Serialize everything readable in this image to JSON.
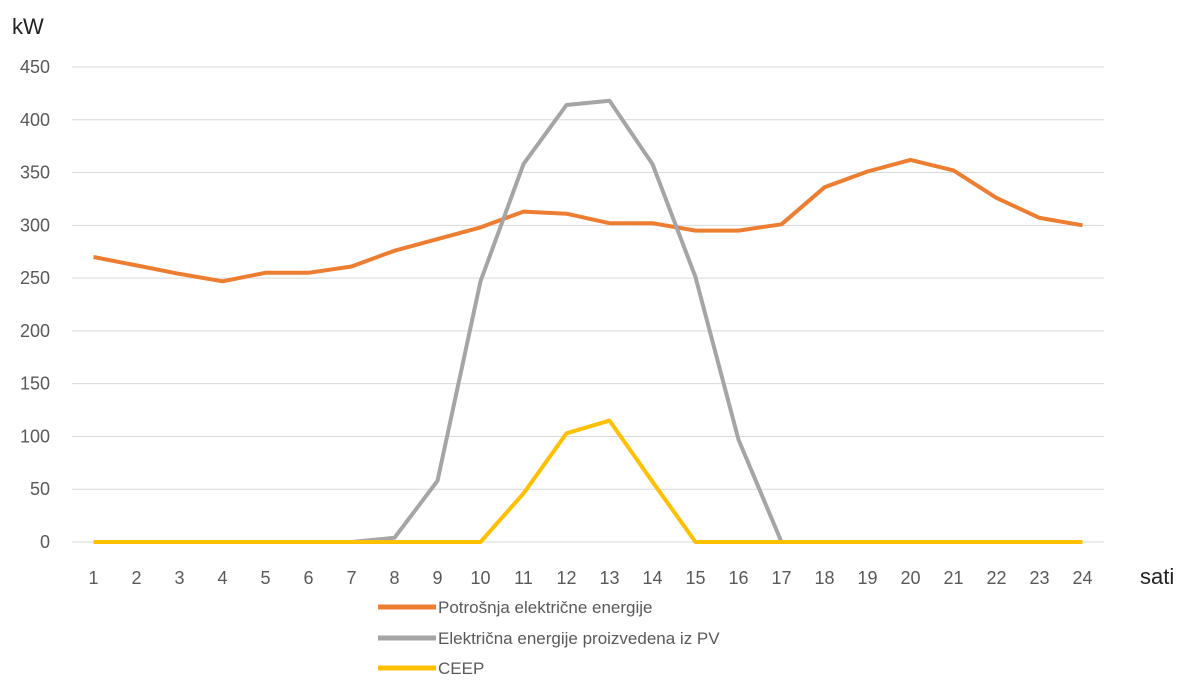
{
  "chart_data": {
    "type": "line",
    "ylabel": "kW",
    "xlabel": "sati",
    "ylim": [
      0,
      450
    ],
    "yticks": [
      0,
      50,
      100,
      150,
      200,
      250,
      300,
      350,
      400,
      450
    ],
    "x": [
      1,
      2,
      3,
      4,
      5,
      6,
      7,
      8,
      9,
      10,
      11,
      12,
      13,
      14,
      15,
      16,
      17,
      18,
      19,
      20,
      21,
      22,
      23,
      24
    ],
    "grid": true,
    "legend_position": "bottom",
    "series": [
      {
        "name": "Potrošnja električne energije",
        "color": "#ED7D31",
        "values": [
          270,
          262,
          254,
          247,
          255,
          255,
          261,
          276,
          287,
          298,
          313,
          311,
          302,
          302,
          295,
          295,
          301,
          336,
          351,
          362,
          352,
          326,
          307,
          300
        ]
      },
      {
        "name": "Električna energije proizvedena iz PV",
        "color": "#A5A5A5",
        "values": [
          0,
          0,
          0,
          0,
          0,
          0,
          0,
          4,
          58,
          247,
          358,
          414,
          418,
          358,
          251,
          97,
          0,
          null,
          null,
          null,
          null,
          null,
          null,
          null
        ]
      },
      {
        "name": "CEEP",
        "color": "#FFC000",
        "values": [
          0,
          0,
          0,
          0,
          0,
          0,
          0,
          0,
          0,
          0,
          46,
          103,
          115,
          57,
          0,
          0,
          0,
          0,
          0,
          0,
          0,
          0,
          0,
          0
        ]
      }
    ]
  }
}
